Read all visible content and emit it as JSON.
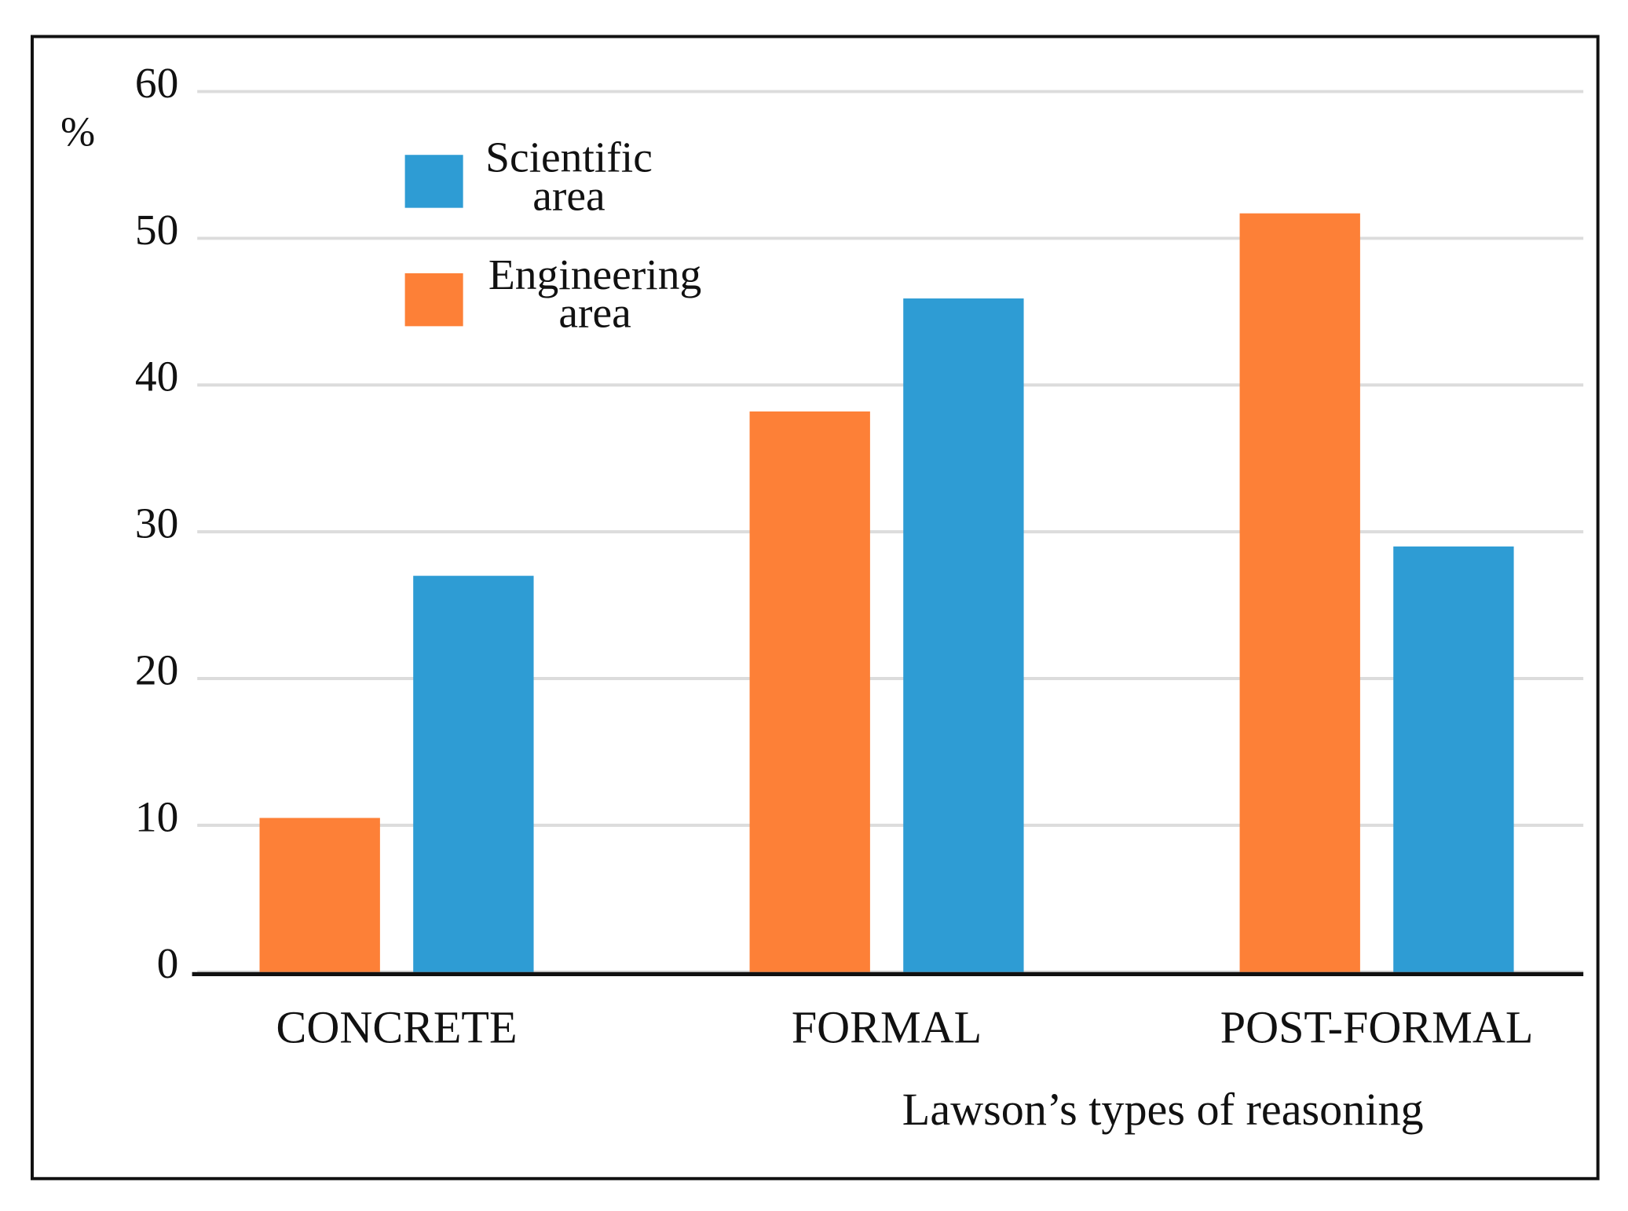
{
  "chart_data": {
    "type": "bar",
    "y_label": "%",
    "x_label": "Lawson’s types of reasoning",
    "categories": [
      "CONCRETE",
      "FORMAL",
      "POST-FORMAL"
    ],
    "series": [
      {
        "name": "Scientific area",
        "color": "#2e9cd4",
        "values": [
          27.0,
          45.9,
          29.0
        ]
      },
      {
        "name": "Engineering area",
        "color": "#fd8037",
        "values": [
          10.5,
          38.2,
          51.7
        ]
      }
    ],
    "ylim": [
      0,
      60
    ],
    "yticks": [
      0,
      10,
      20,
      30,
      40,
      50,
      60
    ],
    "grid": true,
    "legend": "upper left"
  }
}
